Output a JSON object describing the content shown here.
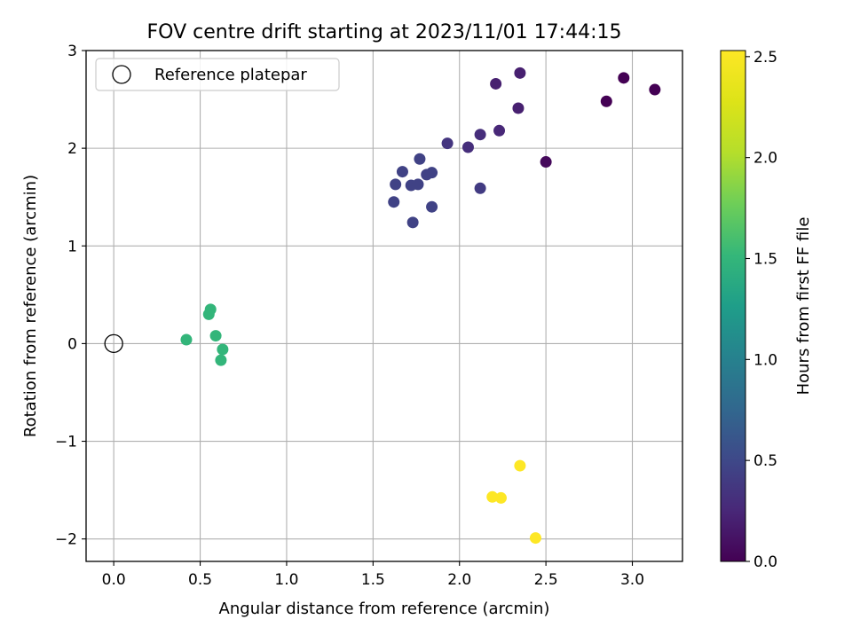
{
  "chart_data": {
    "type": "scatter",
    "title": "FOV centre drift starting at 2023/11/01 17:44:15",
    "xlabel": "Angular distance from reference (arcmin)",
    "ylabel": "Rotation from reference (arcmin)",
    "xlim": [
      -0.16,
      3.29
    ],
    "ylim": [
      -2.23,
      3.0
    ],
    "xticks": [
      0.0,
      0.5,
      1.0,
      1.5,
      2.0,
      2.5,
      3.0
    ],
    "xtick_labels": [
      "0.0",
      "0.5",
      "1.0",
      "1.5",
      "2.0",
      "2.5",
      "3.0"
    ],
    "yticks": [
      -2,
      -1,
      0,
      1,
      2,
      3
    ],
    "ytick_labels": [
      "−2",
      "−1",
      "0",
      "1",
      "2",
      "3"
    ],
    "grid": true,
    "legend": {
      "placement": "top-left",
      "entries": [
        "Reference platepar"
      ]
    },
    "reference_point": {
      "x": 0.0,
      "y": 0.0,
      "label": "Reference platepar"
    },
    "colorbar": {
      "label": "Hours from first FF file",
      "colormap": "viridis",
      "range": [
        0.0,
        2.53
      ],
      "ticks": [
        0.0,
        0.5,
        1.0,
        1.5,
        2.0,
        2.5
      ],
      "tick_labels": [
        "0.0",
        "0.5",
        "1.0",
        "1.5",
        "2.0",
        "2.5"
      ]
    },
    "points": [
      {
        "x": 3.13,
        "y": 2.6,
        "hours": 0.0
      },
      {
        "x": 2.95,
        "y": 2.72,
        "hours": 0.0
      },
      {
        "x": 2.85,
        "y": 2.48,
        "hours": 0.0
      },
      {
        "x": 2.5,
        "y": 1.86,
        "hours": 0.05
      },
      {
        "x": 2.35,
        "y": 2.77,
        "hours": 0.2
      },
      {
        "x": 2.21,
        "y": 2.66,
        "hours": 0.2
      },
      {
        "x": 2.34,
        "y": 2.41,
        "hours": 0.2
      },
      {
        "x": 2.23,
        "y": 2.18,
        "hours": 0.25
      },
      {
        "x": 2.12,
        "y": 2.14,
        "hours": 0.3
      },
      {
        "x": 2.05,
        "y": 2.01,
        "hours": 0.3
      },
      {
        "x": 1.93,
        "y": 2.05,
        "hours": 0.35
      },
      {
        "x": 2.12,
        "y": 1.59,
        "hours": 0.4
      },
      {
        "x": 1.77,
        "y": 1.89,
        "hours": 0.45
      },
      {
        "x": 1.84,
        "y": 1.75,
        "hours": 0.45
      },
      {
        "x": 1.81,
        "y": 1.73,
        "hours": 0.45
      },
      {
        "x": 1.67,
        "y": 1.76,
        "hours": 0.45
      },
      {
        "x": 1.63,
        "y": 1.63,
        "hours": 0.45
      },
      {
        "x": 1.72,
        "y": 1.62,
        "hours": 0.45
      },
      {
        "x": 1.76,
        "y": 1.63,
        "hours": 0.45
      },
      {
        "x": 1.62,
        "y": 1.45,
        "hours": 0.45
      },
      {
        "x": 1.84,
        "y": 1.4,
        "hours": 0.45
      },
      {
        "x": 1.73,
        "y": 1.24,
        "hours": 0.45
      },
      {
        "x": 0.56,
        "y": 0.35,
        "hours": 1.5
      },
      {
        "x": 0.55,
        "y": 0.3,
        "hours": 1.5
      },
      {
        "x": 0.42,
        "y": 0.04,
        "hours": 1.5
      },
      {
        "x": 0.59,
        "y": 0.08,
        "hours": 1.5
      },
      {
        "x": 0.63,
        "y": -0.06,
        "hours": 1.5
      },
      {
        "x": 0.62,
        "y": -0.17,
        "hours": 1.5
      },
      {
        "x": 2.35,
        "y": -1.25,
        "hours": 2.53
      },
      {
        "x": 2.19,
        "y": -1.57,
        "hours": 2.53
      },
      {
        "x": 2.24,
        "y": -1.58,
        "hours": 2.53
      },
      {
        "x": 2.44,
        "y": -1.99,
        "hours": 2.53
      }
    ]
  }
}
